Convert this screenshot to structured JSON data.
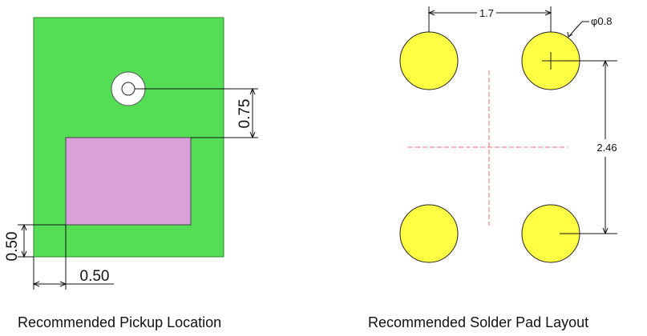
{
  "pickup": {
    "dim_vertical": "0.75",
    "dim_left": "0.50",
    "dim_bottom": "0.50",
    "caption": "Recommended Pickup Location"
  },
  "pads": {
    "dim_pitch_x": "1.7",
    "dim_diameter": "φ0.8",
    "dim_pitch_y": "2.46",
    "caption": "Recommended Solder Pad Layout"
  },
  "colors": {
    "body": "#55dd55",
    "pad": "#d9a0d9",
    "solder_pad": "#ffff44",
    "centerline": "#ff6666",
    "line": "#111111"
  }
}
